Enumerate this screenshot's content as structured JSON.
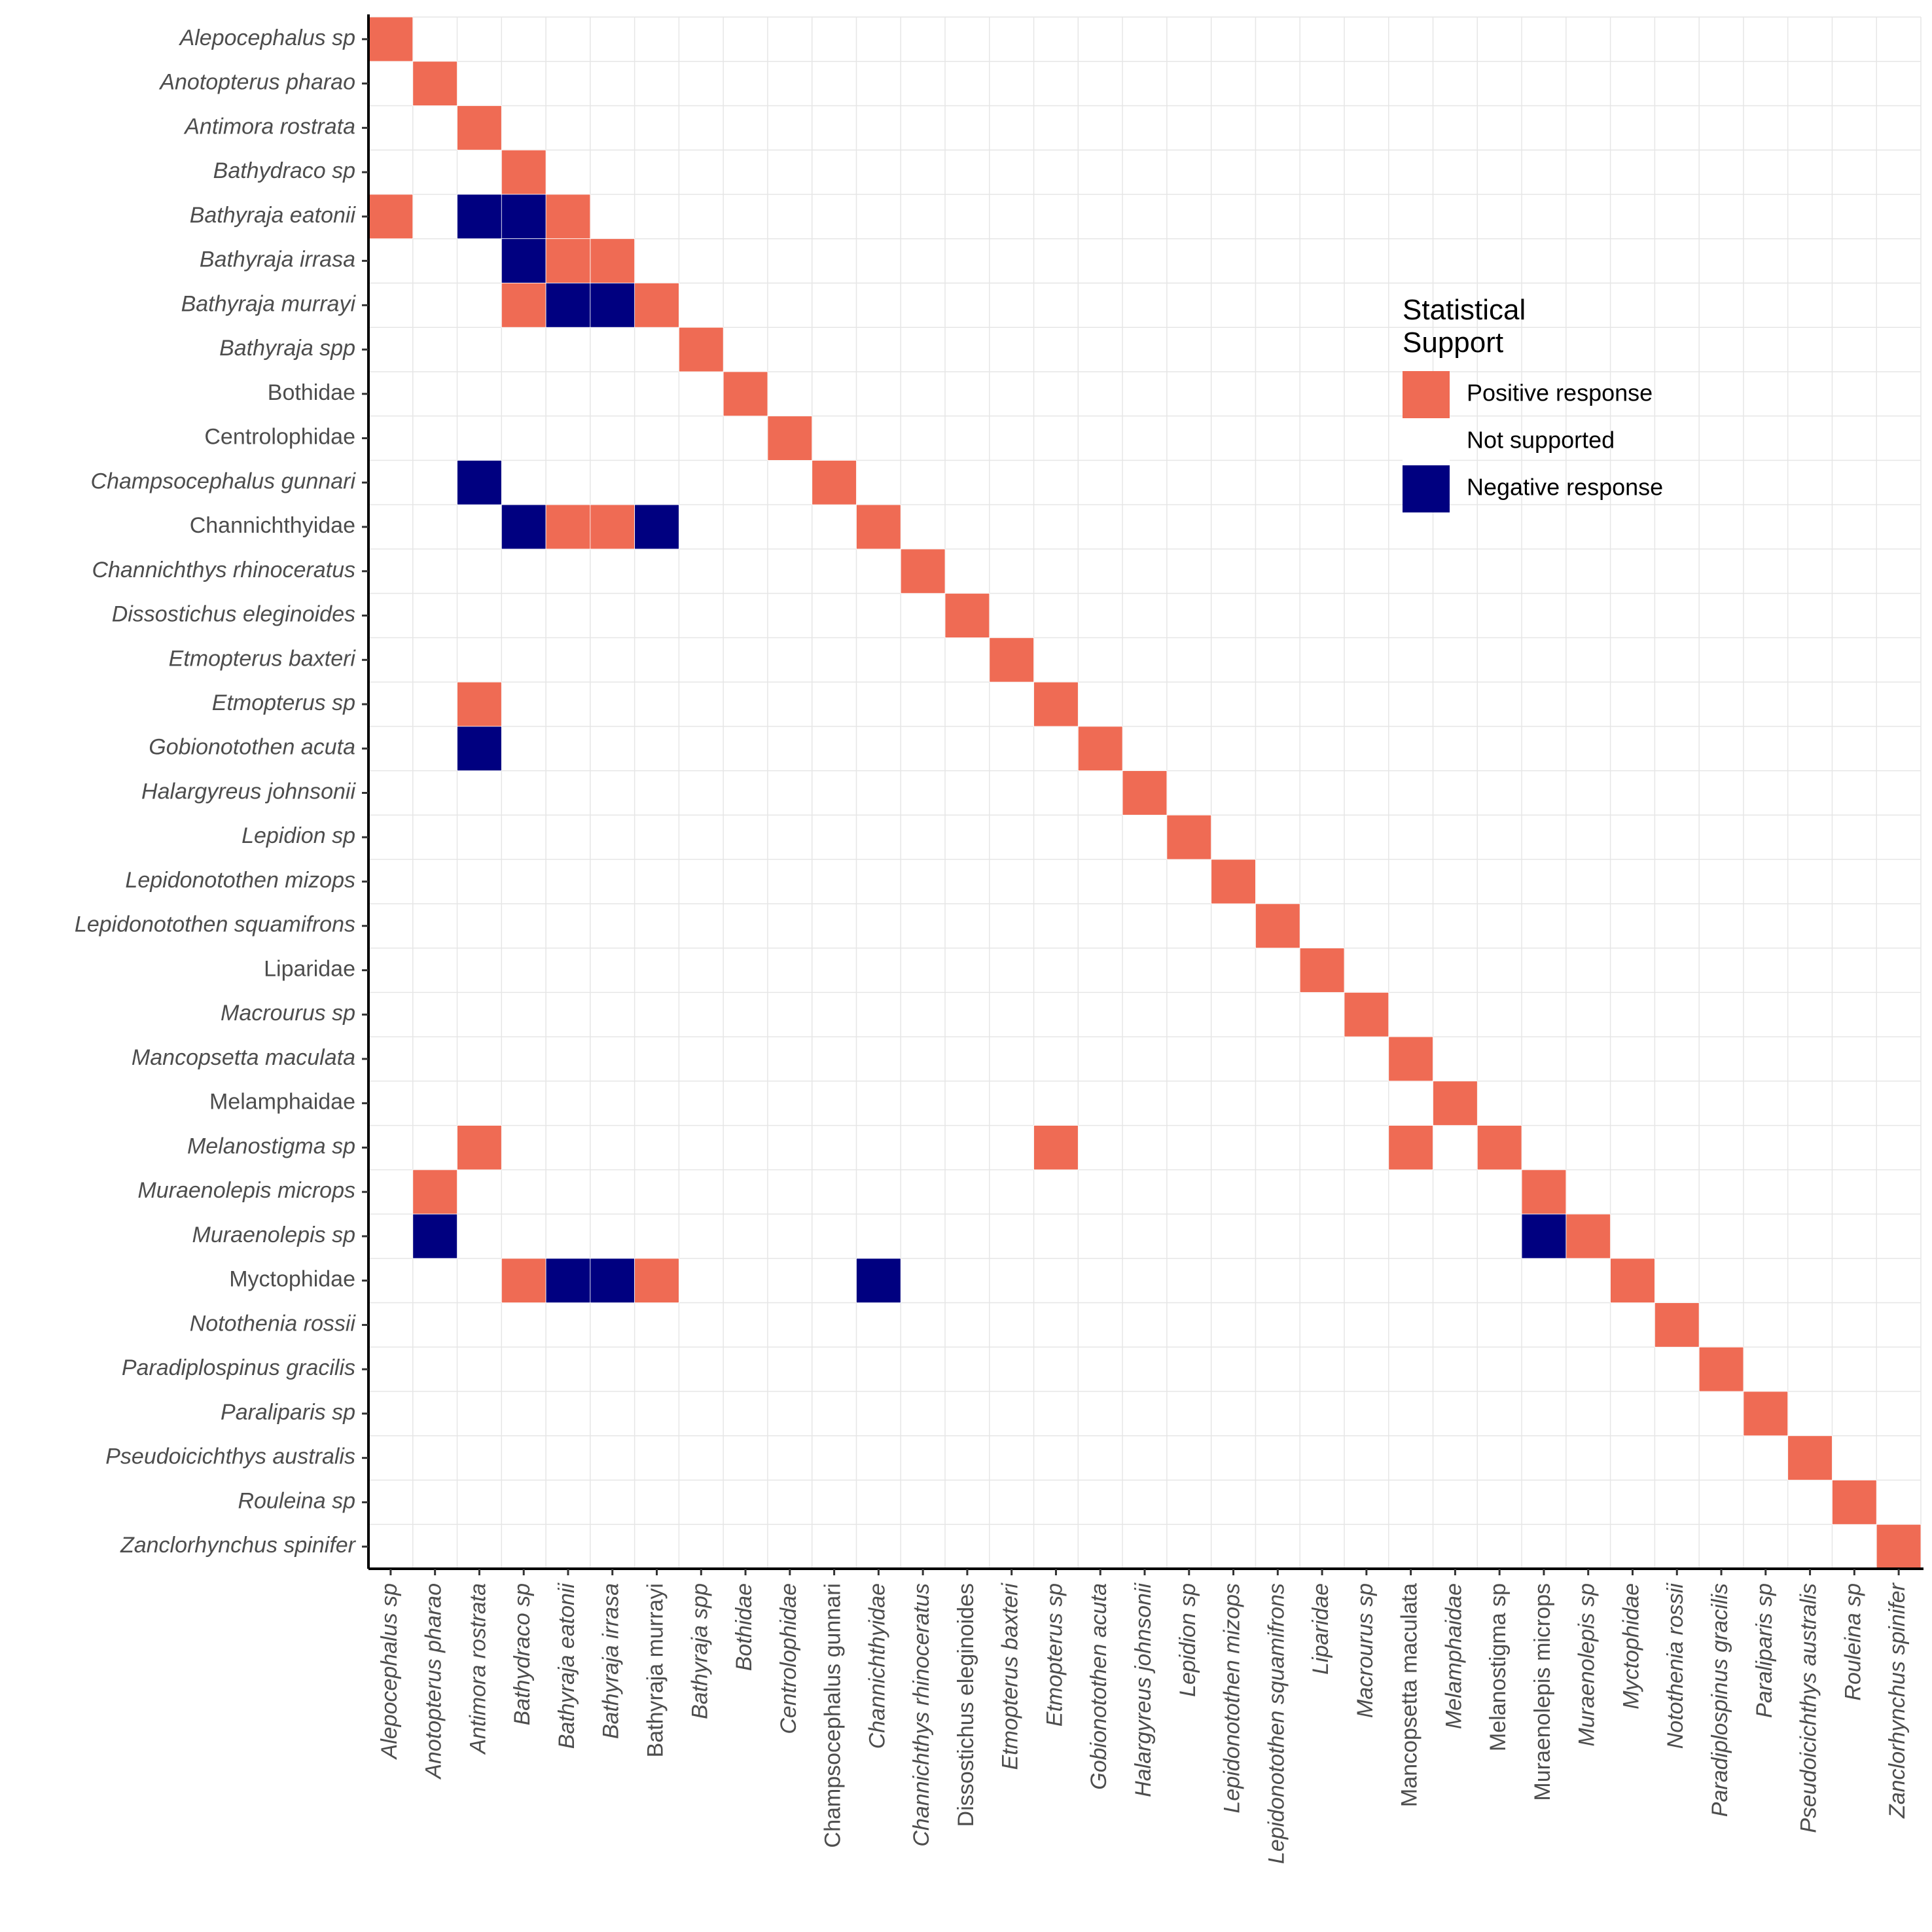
{
  "chart_data": {
    "type": "heatmap",
    "taxa": [
      {
        "name": "Alepocephalus sp",
        "italic": true
      },
      {
        "name": "Anotopterus pharao",
        "italic": true
      },
      {
        "name": "Antimora rostrata",
        "italic": true
      },
      {
        "name": "Bathydraco sp",
        "italic": true
      },
      {
        "name": "Bathyraja eatonii",
        "italic": true
      },
      {
        "name": "Bathyraja irrasa",
        "italic": true
      },
      {
        "name": "Bathyraja murrayi",
        "italic": true,
        "x_italic": false
      },
      {
        "name": "Bathyraja spp",
        "italic": true
      },
      {
        "name": "Bothidae",
        "italic": false,
        "x_italic": true
      },
      {
        "name": "Centrolophidae",
        "italic": false,
        "x_italic": true
      },
      {
        "name": "Champsocephalus gunnari",
        "italic": true,
        "x_italic": false
      },
      {
        "name": "Channichthyidae",
        "italic": false,
        "x_italic": true
      },
      {
        "name": "Channichthys rhinoceratus",
        "italic": true
      },
      {
        "name": "Dissostichus eleginoides",
        "italic": true,
        "x_italic": false
      },
      {
        "name": "Etmopterus baxteri",
        "italic": true
      },
      {
        "name": "Etmopterus sp",
        "italic": true
      },
      {
        "name": "Gobionotothen acuta",
        "italic": true
      },
      {
        "name": "Halargyreus johnsonii",
        "italic": true
      },
      {
        "name": "Lepidion sp",
        "italic": true
      },
      {
        "name": "Lepidonotothen mizops",
        "italic": true
      },
      {
        "name": "Lepidonotothen squamifrons",
        "italic": true
      },
      {
        "name": "Liparidae",
        "italic": false,
        "x_italic": true
      },
      {
        "name": "Macrourus sp",
        "italic": true
      },
      {
        "name": "Mancopsetta maculata",
        "italic": true,
        "x_italic": false
      },
      {
        "name": "Melamphaidae",
        "italic": false,
        "x_italic": true
      },
      {
        "name": "Melanostigma sp",
        "italic": true,
        "x_italic": false
      },
      {
        "name": "Muraenolepis microps",
        "italic": true,
        "x_italic": false
      },
      {
        "name": "Muraenolepis sp",
        "italic": true
      },
      {
        "name": "Myctophidae",
        "italic": false,
        "x_italic": true
      },
      {
        "name": "Notothenia rossii",
        "italic": true
      },
      {
        "name": "Paradiplospinus gracilis",
        "italic": true
      },
      {
        "name": "Paraliparis sp",
        "italic": true
      },
      {
        "name": "Pseudoicichthys australis",
        "italic": true
      },
      {
        "name": "Rouleina sp",
        "italic": true
      },
      {
        "name": "Zanclorhynchus spinifer",
        "italic": true
      }
    ],
    "diagonal": "Positive response",
    "cells": [
      {
        "row": "Bathyraja eatonii",
        "col": "Alepocephalus sp",
        "value": "Positive response"
      },
      {
        "row": "Bathyraja eatonii",
        "col": "Antimora rostrata",
        "value": "Negative response"
      },
      {
        "row": "Bathyraja eatonii",
        "col": "Bathydraco sp",
        "value": "Negative response"
      },
      {
        "row": "Bathyraja irrasa",
        "col": "Bathydraco sp",
        "value": "Negative response"
      },
      {
        "row": "Bathyraja irrasa",
        "col": "Bathyraja eatonii",
        "value": "Positive response"
      },
      {
        "row": "Bathyraja murrayi",
        "col": "Bathydraco sp",
        "value": "Positive response"
      },
      {
        "row": "Bathyraja murrayi",
        "col": "Bathyraja eatonii",
        "value": "Negative response"
      },
      {
        "row": "Bathyraja murrayi",
        "col": "Bathyraja irrasa",
        "value": "Negative response"
      },
      {
        "row": "Champsocephalus gunnari",
        "col": "Antimora rostrata",
        "value": "Negative response"
      },
      {
        "row": "Channichthyidae",
        "col": "Bathydraco sp",
        "value": "Negative response"
      },
      {
        "row": "Channichthyidae",
        "col": "Bathyraja eatonii",
        "value": "Positive response"
      },
      {
        "row": "Channichthyidae",
        "col": "Bathyraja irrasa",
        "value": "Positive response"
      },
      {
        "row": "Channichthyidae",
        "col": "Bathyraja murrayi",
        "value": "Negative response"
      },
      {
        "row": "Etmopterus sp",
        "col": "Antimora rostrata",
        "value": "Positive response"
      },
      {
        "row": "Gobionotothen acuta",
        "col": "Antimora rostrata",
        "value": "Negative response"
      },
      {
        "row": "Melanostigma sp",
        "col": "Antimora rostrata",
        "value": "Positive response"
      },
      {
        "row": "Melanostigma sp",
        "col": "Etmopterus sp",
        "value": "Positive response"
      },
      {
        "row": "Melanostigma sp",
        "col": "Mancopsetta maculata",
        "value": "Positive response"
      },
      {
        "row": "Muraenolepis microps",
        "col": "Anotopterus pharao",
        "value": "Positive response"
      },
      {
        "row": "Muraenolepis sp",
        "col": "Anotopterus pharao",
        "value": "Negative response"
      },
      {
        "row": "Muraenolepis sp",
        "col": "Muraenolepis microps",
        "value": "Negative response"
      },
      {
        "row": "Myctophidae",
        "col": "Bathydraco sp",
        "value": "Positive response"
      },
      {
        "row": "Myctophidae",
        "col": "Bathyraja eatonii",
        "value": "Negative response"
      },
      {
        "row": "Myctophidae",
        "col": "Bathyraja irrasa",
        "value": "Negative response"
      },
      {
        "row": "Myctophidae",
        "col": "Bathyraja murrayi",
        "value": "Positive response"
      },
      {
        "row": "Myctophidae",
        "col": "Channichthyidae",
        "value": "Negative response"
      }
    ],
    "legend": {
      "title_lines": [
        "Statistical",
        "Support"
      ],
      "position": "right",
      "entries": [
        {
          "label": "Positive response",
          "color": "#ef6b54"
        },
        {
          "label": "Not supported",
          "color": "#ffffff"
        },
        {
          "label": "Negative response",
          "color": "#000080"
        }
      ]
    },
    "grid": true,
    "grid_color": "#e6e6e6",
    "axis_color": "#000000",
    "tick_label_color": "#4d4d4d"
  }
}
